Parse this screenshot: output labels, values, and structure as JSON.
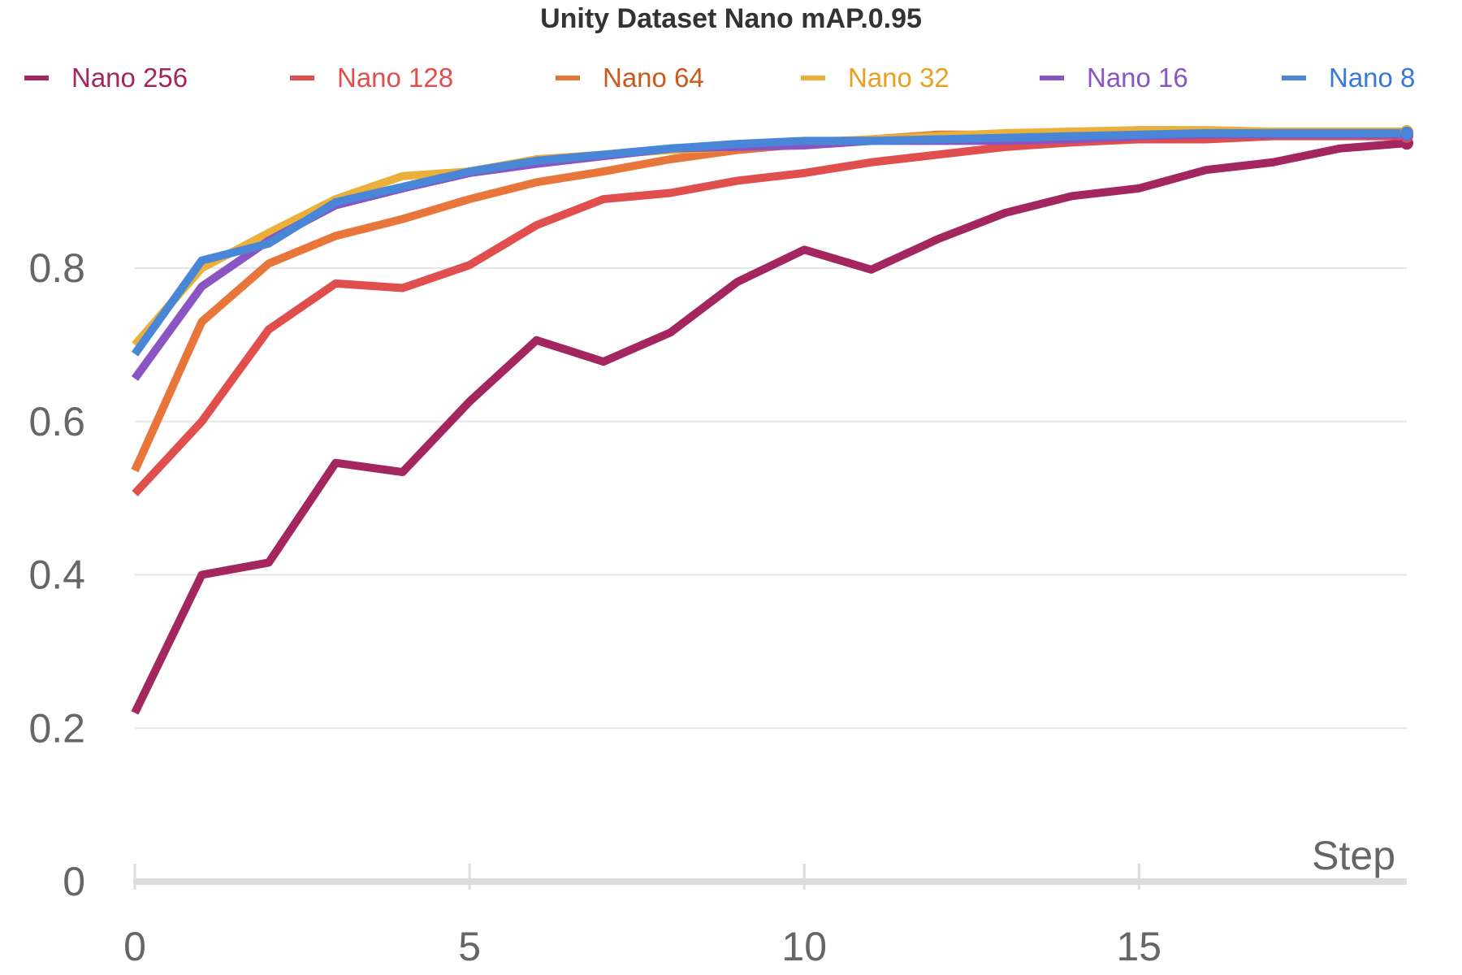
{
  "chart_data": {
    "type": "line",
    "title": "Unity Dataset Nano mAP.0.95",
    "xlabel": "Step",
    "ylabel": "",
    "xlim": [
      0,
      19
    ],
    "ylim": [
      0,
      1
    ],
    "x_ticks": [
      "0",
      "5",
      "10",
      "15"
    ],
    "x_tick_values": [
      0,
      5,
      10,
      15
    ],
    "y_ticks": [
      "0",
      "0.2",
      "0.4",
      "0.6",
      "0.8"
    ],
    "y_tick_values": [
      0,
      0.2,
      0.4,
      0.6,
      0.8
    ],
    "grid": "horizontal",
    "legend_position": "top",
    "x": [
      0,
      1,
      2,
      3,
      4,
      5,
      6,
      7,
      8,
      9,
      10,
      11,
      12,
      13,
      14,
      15,
      16,
      17,
      18,
      19
    ],
    "series": [
      {
        "name": "Nano 256",
        "color": "#a3265e",
        "values": [
          0.22,
          0.4,
          0.416,
          0.546,
          0.534,
          0.626,
          0.706,
          0.678,
          0.716,
          0.782,
          0.824,
          0.798,
          0.838,
          0.872,
          0.894,
          0.904,
          0.928,
          0.938,
          0.956,
          0.963
        ]
      },
      {
        "name": "Nano 128",
        "color": "#e04e4e",
        "values": [
          0.506,
          0.6,
          0.72,
          0.78,
          0.774,
          0.804,
          0.856,
          0.89,
          0.898,
          0.914,
          0.924,
          0.938,
          0.948,
          0.958,
          0.964,
          0.968,
          0.968,
          0.972,
          0.972,
          0.972
        ]
      },
      {
        "name": "Nano 64",
        "color": "#e8763a",
        "values": [
          0.536,
          0.73,
          0.806,
          0.842,
          0.864,
          0.89,
          0.912,
          0.926,
          0.942,
          0.954,
          0.962,
          0.968,
          0.974,
          0.974,
          0.976,
          0.978,
          0.978,
          0.978,
          0.978,
          0.978
        ]
      },
      {
        "name": "Nano 32",
        "color": "#eab03a",
        "values": [
          0.7,
          0.8,
          0.846,
          0.89,
          0.92,
          0.926,
          0.942,
          0.948,
          0.954,
          0.958,
          0.964,
          0.968,
          0.972,
          0.976,
          0.978,
          0.98,
          0.98,
          0.978,
          0.978,
          0.978
        ]
      },
      {
        "name": "Nano 16",
        "color": "#8a55c2",
        "values": [
          0.656,
          0.776,
          0.836,
          0.882,
          0.904,
          0.924,
          0.936,
          0.946,
          0.956,
          0.958,
          0.96,
          0.966,
          0.966,
          0.966,
          0.968,
          0.972,
          0.974,
          0.974,
          0.974,
          0.974
        ]
      },
      {
        "name": "Nano 8",
        "color": "#4a86d8",
        "values": [
          0.688,
          0.81,
          0.832,
          0.886,
          0.906,
          0.926,
          0.94,
          0.948,
          0.956,
          0.962,
          0.966,
          0.966,
          0.968,
          0.97,
          0.972,
          0.974,
          0.976,
          0.976,
          0.976,
          0.976
        ]
      }
    ],
    "legend_text_colors": [
      "#a3265e",
      "#e04e4e",
      "#c85a1e",
      "#e8a020",
      "#8a55c2",
      "#3a78d8"
    ]
  }
}
